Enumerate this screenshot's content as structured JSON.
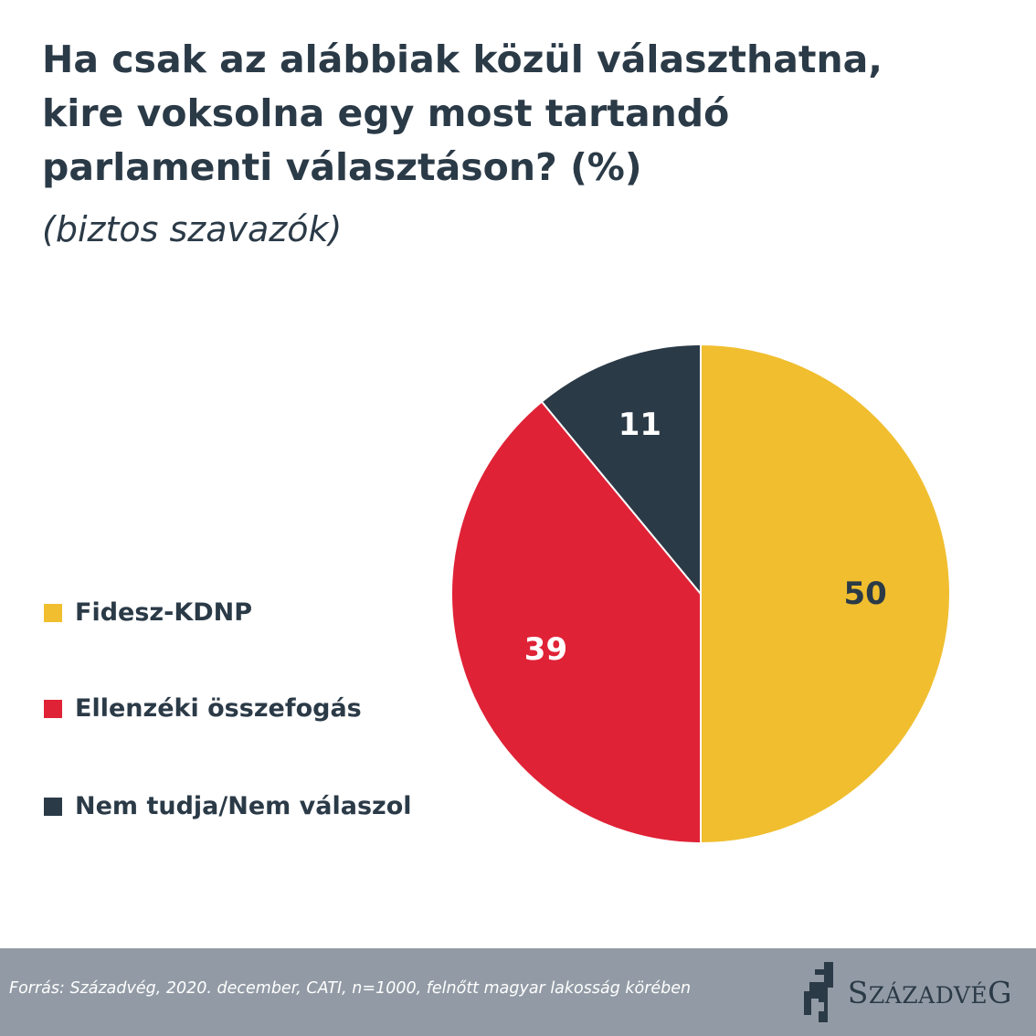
{
  "title_lines": [
    "Ha csak az alábbiak közül választhatna,",
    "kire voksolna egy most tartandó",
    "parlamenti választáson? (%)"
  ],
  "subtitle": "(biztos szavazók)",
  "chart_data": {
    "type": "pie",
    "title": "Ha csak az alábbiak közül választhatna, kire voksolna egy most tartandó parlamenti választáson? (%)",
    "subtitle": "(biztos szavazók)",
    "categories": [
      "Fidesz-KDNP",
      "Ellenzéki összefogás",
      "Nem tudja/Nem válaszol"
    ],
    "values": [
      50,
      39,
      11
    ],
    "data_labels": [
      "50",
      "39",
      "11"
    ],
    "colors": [
      "#f0be2f",
      "#e02236",
      "#2b3a47"
    ],
    "label_colors": [
      "#2b3a47",
      "#ffffff",
      "#ffffff"
    ],
    "legend_position": "left"
  },
  "legend": [
    {
      "label": "Fidesz-KDNP",
      "color": "#f0be2f"
    },
    {
      "label": "Ellenzéki összefogás",
      "color": "#e02236"
    },
    {
      "label": "Nem tudja/Nem válaszol",
      "color": "#2b3a47"
    }
  ],
  "footer": {
    "source": "Forrás: Századvég, 2020. december, CATI, n=1000, felnőtt magyar lakosság körében",
    "logo": {
      "brand": "SzázadvéG",
      "parts": [
        {
          "text": "S",
          "small": false
        },
        {
          "text": "ZÁZADVÉ",
          "small": true
        },
        {
          "text": "G",
          "small": false
        }
      ],
      "icon": "szazadveg-logo-icon"
    },
    "background": "#929ba5"
  }
}
